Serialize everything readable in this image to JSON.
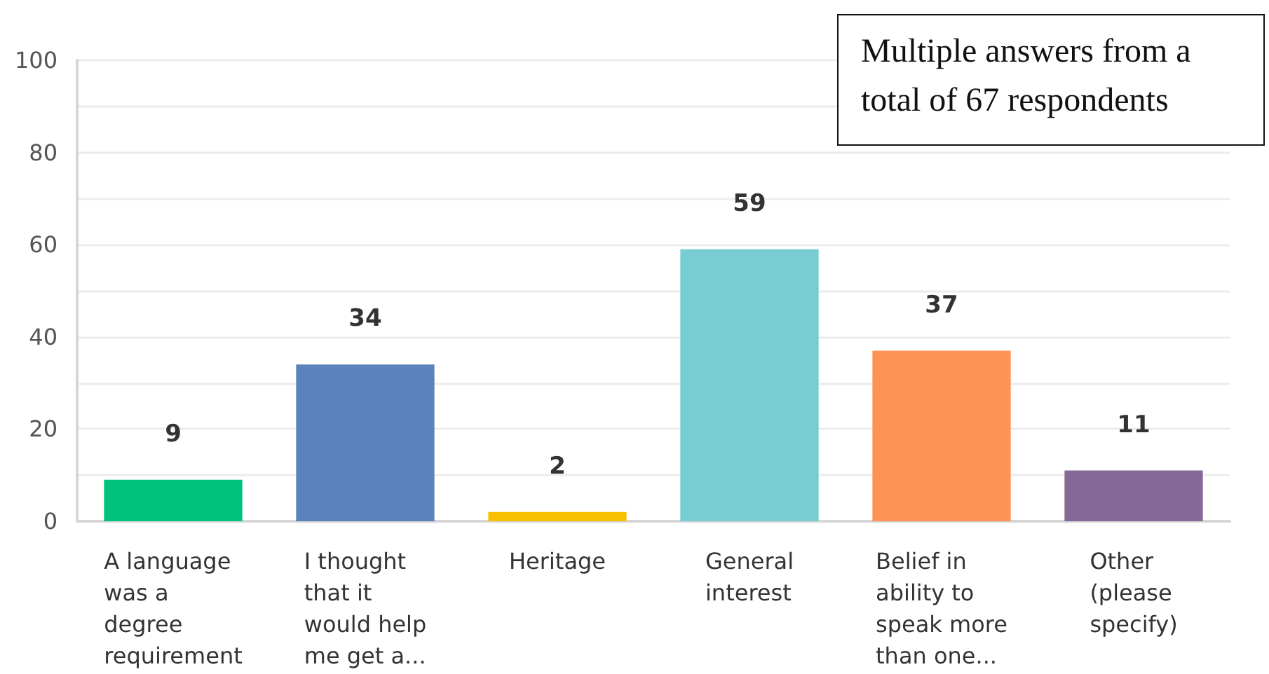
{
  "chart_data": {
    "type": "bar",
    "categories": [
      "A language was a degree requirement",
      "I thought that it would help me get a...",
      "Heritage",
      "General interest",
      "Belief in ability to speak more than one...",
      "Other (please specify)"
    ],
    "values": [
      9,
      34,
      2,
      59,
      37,
      11
    ],
    "colors": [
      "#00c27c",
      "#5a83bb",
      "#f7c100",
      "#77cdd1",
      "#ff9257",
      "#856897"
    ],
    "ylim": [
      0,
      100
    ],
    "yticks": [
      0,
      {
        "value": 10,
        "label": null
      },
      20,
      {
        "value": 30,
        "label": null
      },
      40,
      {
        "value": 50,
        "label": null
      },
      60,
      {
        "value": 70,
        "label": null
      },
      80,
      {
        "value": 90,
        "label": null
      },
      100
    ],
    "grid": "y",
    "data_labels": true,
    "annotations": [
      "Multiple answers from a total of 67 respondents"
    ]
  }
}
